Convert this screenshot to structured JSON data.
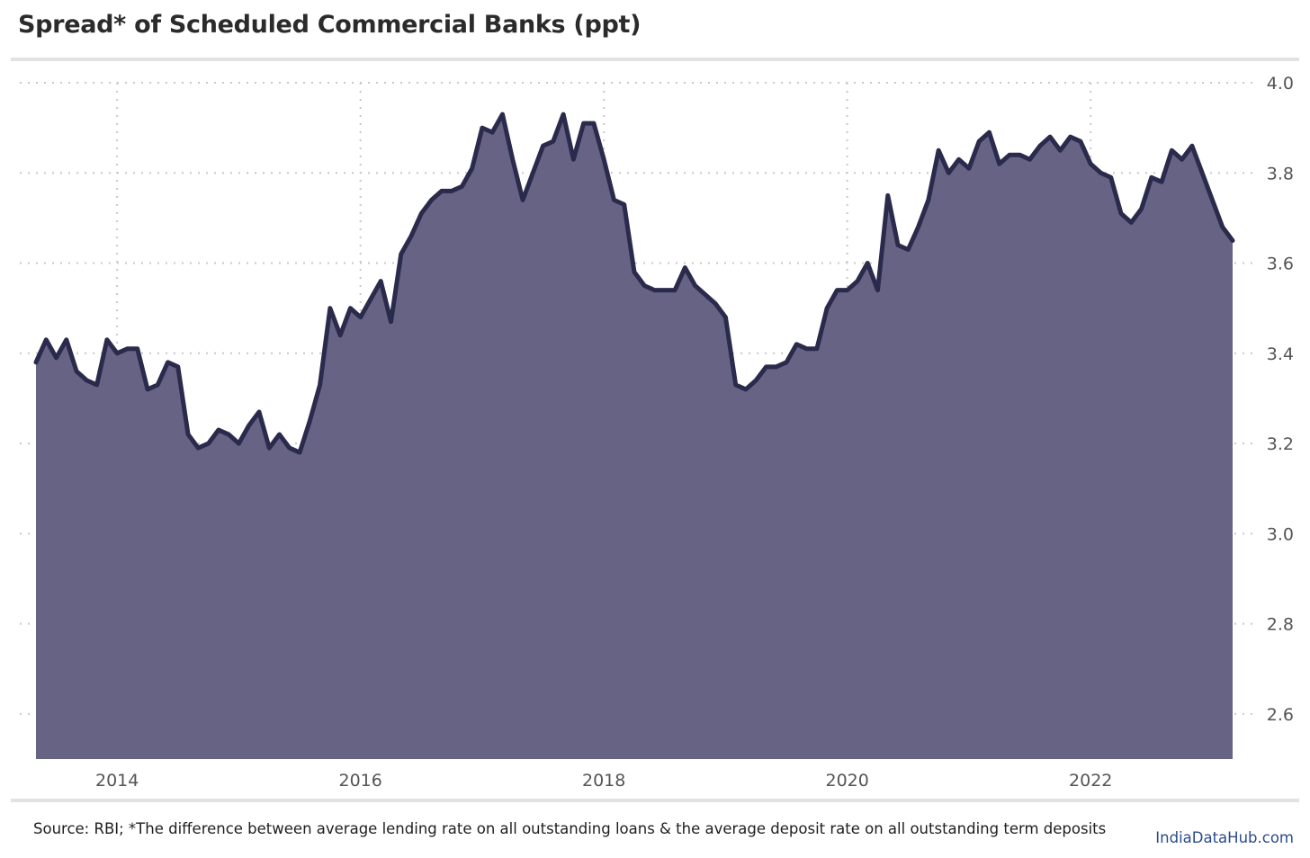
{
  "title": "Spread* of Scheduled Commercial Banks (ppt)",
  "footer": {
    "source": "Source: RBI; *The difference between average lending rate on all outstanding loans & the average deposit rate on all outstanding term deposits",
    "brand": "IndiaDataHub.com"
  },
  "colors": {
    "area_fill": "#666384",
    "line": "#2a2a4c",
    "grid": "#c8c8c8",
    "rules": "#e2e2e2"
  },
  "chart_data": {
    "type": "area",
    "title": "Spread* of Scheduled Commercial Banks (ppt)",
    "xlabel": "",
    "ylabel": "",
    "x_ticks": [
      "2014",
      "2016",
      "2018",
      "2020",
      "2022"
    ],
    "y_ticks": [
      "2.6",
      "2.8",
      "3.0",
      "3.2",
      "3.4",
      "3.6",
      "3.8",
      "4.0"
    ],
    "ylim": [
      2.5,
      4.0
    ],
    "xlim": [
      "2013-05",
      "2023-03"
    ],
    "y_axis_side": "right",
    "grid": "dotted",
    "legend": "none",
    "series": [
      {
        "x": [
          "2013-05",
          "2013-06",
          "2013-07",
          "2013-08",
          "2013-09",
          "2013-10",
          "2013-11",
          "2013-12",
          "2014-01",
          "2014-02",
          "2014-03",
          "2014-04",
          "2014-05",
          "2014-06",
          "2014-07",
          "2014-08",
          "2014-09",
          "2014-10",
          "2014-11",
          "2014-12",
          "2015-01",
          "2015-02",
          "2015-03",
          "2015-04",
          "2015-05",
          "2015-06",
          "2015-07",
          "2015-08",
          "2015-09",
          "2015-10",
          "2015-11",
          "2015-12",
          "2016-01",
          "2016-02",
          "2016-03",
          "2016-04",
          "2016-05",
          "2016-06",
          "2016-07",
          "2016-08",
          "2016-09",
          "2016-10",
          "2016-11",
          "2016-12",
          "2017-01",
          "2017-02",
          "2017-03",
          "2017-04",
          "2017-05",
          "2017-06",
          "2017-07",
          "2017-08",
          "2017-09",
          "2017-10",
          "2017-11",
          "2017-12",
          "2018-01",
          "2018-02",
          "2018-03",
          "2018-04",
          "2018-05",
          "2018-06",
          "2018-07",
          "2018-08",
          "2018-09",
          "2018-10",
          "2018-11",
          "2018-12",
          "2019-01",
          "2019-02",
          "2019-03",
          "2019-04",
          "2019-05",
          "2019-06",
          "2019-07",
          "2019-08",
          "2019-09",
          "2019-10",
          "2019-11",
          "2019-12",
          "2020-01",
          "2020-02",
          "2020-03",
          "2020-04",
          "2020-05",
          "2020-06",
          "2020-07",
          "2020-08",
          "2020-09",
          "2020-10",
          "2020-11",
          "2020-12",
          "2021-01",
          "2021-02",
          "2021-03",
          "2021-04",
          "2021-05",
          "2021-06",
          "2021-07",
          "2021-08",
          "2021-09",
          "2021-10",
          "2021-11",
          "2021-12",
          "2022-01",
          "2022-02",
          "2022-03",
          "2022-04",
          "2022-05",
          "2022-06",
          "2022-07",
          "2022-08",
          "2022-09",
          "2022-10",
          "2022-11",
          "2022-12",
          "2023-01",
          "2023-02",
          "2023-03"
        ],
        "values": [
          3.38,
          3.43,
          3.39,
          3.43,
          3.36,
          3.34,
          3.33,
          3.43,
          3.4,
          3.41,
          3.41,
          3.32,
          3.33,
          3.38,
          3.37,
          3.22,
          3.19,
          3.2,
          3.23,
          3.22,
          3.2,
          3.24,
          3.27,
          3.19,
          3.22,
          3.19,
          3.18,
          3.25,
          3.33,
          3.5,
          3.44,
          3.5,
          3.48,
          3.52,
          3.56,
          3.47,
          3.62,
          3.66,
          3.71,
          3.74,
          3.76,
          3.76,
          3.77,
          3.81,
          3.9,
          3.89,
          3.93,
          3.83,
          3.74,
          3.8,
          3.86,
          3.87,
          3.93,
          3.83,
          3.91,
          3.91,
          3.83,
          3.74,
          3.73,
          3.58,
          3.55,
          3.54,
          3.54,
          3.54,
          3.59,
          3.55,
          3.53,
          3.51,
          3.48,
          3.33,
          3.32,
          3.34,
          3.37,
          3.37,
          3.38,
          3.42,
          3.41,
          3.41,
          3.5,
          3.54,
          3.54,
          3.56,
          3.6,
          3.54,
          3.75,
          3.64,
          3.63,
          3.68,
          3.74,
          3.85,
          3.8,
          3.83,
          3.81,
          3.87,
          3.89,
          3.82,
          3.84,
          3.84,
          3.83,
          3.86,
          3.88,
          3.85,
          3.88,
          3.87,
          3.82,
          3.8,
          3.79,
          3.71,
          3.69,
          3.72,
          3.79,
          3.78,
          3.85,
          3.83,
          3.86,
          3.8,
          3.74,
          3.68,
          3.65
        ]
      }
    ]
  }
}
